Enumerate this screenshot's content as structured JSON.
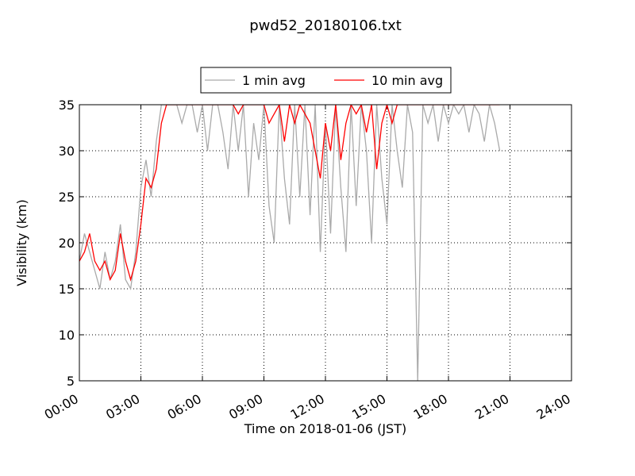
{
  "chart_data": {
    "type": "line",
    "title": "pwd52_20180106.txt",
    "xlabel": "Time on 2018-01-06 (JST)",
    "ylabel": "Visibility (km)",
    "x": [
      0,
      0.25,
      0.5,
      0.75,
      1,
      1.25,
      1.5,
      1.75,
      2,
      2.25,
      2.5,
      2.75,
      3,
      3.25,
      3.5,
      3.75,
      4,
      4.25,
      4.5,
      4.75,
      5,
      5.25,
      5.5,
      5.75,
      6,
      6.25,
      6.5,
      6.75,
      7,
      7.25,
      7.5,
      7.75,
      8,
      8.25,
      8.5,
      8.75,
      9,
      9.25,
      9.5,
      9.75,
      10,
      10.25,
      10.5,
      10.75,
      11,
      11.25,
      11.5,
      11.75,
      12,
      12.25,
      12.5,
      12.75,
      13,
      13.25,
      13.5,
      13.75,
      14,
      14.25,
      14.5,
      14.75,
      15,
      15.25,
      15.5,
      15.75,
      16,
      16.25,
      16.5,
      16.75,
      17,
      17.25,
      17.5,
      17.75,
      18,
      18.25,
      18.5,
      18.75,
      19,
      19.25,
      19.5,
      19.75,
      20,
      20.25,
      20.5
    ],
    "series": [
      {
        "name": "1 min avg",
        "color": "#aaaaaa",
        "values": [
          18,
          21,
          19,
          17,
          15,
          19,
          16,
          18,
          22,
          16,
          15,
          19,
          26,
          29,
          25,
          31,
          35,
          35,
          35,
          35,
          33,
          35,
          35,
          32,
          35,
          30,
          35,
          35,
          32,
          28,
          35,
          30,
          35,
          25,
          33,
          29,
          35,
          24,
          20,
          35,
          27,
          22,
          35,
          25,
          35,
          23,
          35,
          19,
          33,
          21,
          35,
          26,
          19,
          35,
          24,
          35,
          30,
          20,
          35,
          27,
          22,
          35,
          30,
          26,
          35,
          32,
          5,
          35,
          33,
          35,
          31,
          35,
          33,
          35,
          34,
          35,
          32,
          35,
          34,
          31,
          35,
          33,
          30
        ]
      },
      {
        "name": "10 min avg",
        "color": "#ff0000",
        "values": [
          18,
          19,
          21,
          18,
          17,
          18,
          16,
          17,
          21,
          18,
          16,
          18,
          22,
          27,
          26,
          28,
          33,
          35,
          35,
          35,
          35,
          35,
          35,
          35,
          35,
          35,
          35,
          35,
          35,
          35,
          35,
          34,
          35,
          35,
          35,
          35,
          35,
          33,
          34,
          35,
          31,
          35,
          33,
          35,
          34,
          33,
          30,
          27,
          33,
          30,
          35,
          29,
          33,
          35,
          34,
          35,
          32,
          35,
          28,
          33,
          35,
          33,
          35,
          35,
          35,
          35,
          35,
          35,
          35,
          35,
          35,
          35,
          35,
          35,
          35,
          35,
          35,
          35,
          35,
          35,
          35,
          35,
          35
        ]
      }
    ],
    "xlim": [
      0,
      24
    ],
    "xticks": [
      {
        "value": 0,
        "label": "00:00"
      },
      {
        "value": 3,
        "label": "03:00"
      },
      {
        "value": 6,
        "label": "06:00"
      },
      {
        "value": 9,
        "label": "09:00"
      },
      {
        "value": 12,
        "label": "12:00"
      },
      {
        "value": 15,
        "label": "15:00"
      },
      {
        "value": 18,
        "label": "18:00"
      },
      {
        "value": 21,
        "label": "21:00"
      },
      {
        "value": 24,
        "label": "24:00"
      }
    ],
    "ylim": [
      5,
      35
    ],
    "yticks": [
      5,
      10,
      15,
      20,
      25,
      30,
      35
    ],
    "grid": true,
    "legend": "top"
  }
}
